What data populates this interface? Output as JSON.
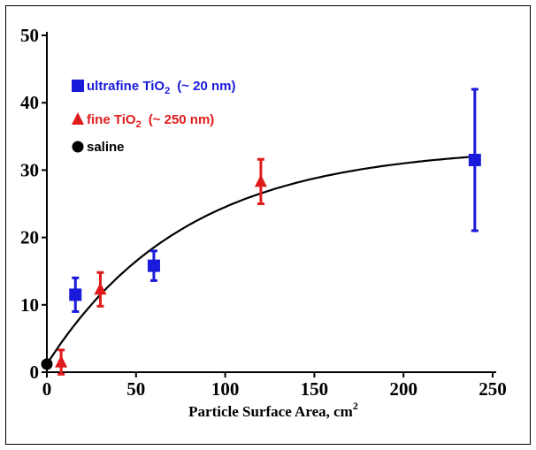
{
  "chart_data": {
    "type": "scatter",
    "title": "",
    "xlabel": "Particle Surface Area, cm",
    "xlabel_sup": "2",
    "ylabel": "",
    "xlim": [
      0,
      250
    ],
    "ylim": [
      0,
      50
    ],
    "x_ticks": [
      0,
      50,
      100,
      150,
      200,
      250
    ],
    "y_ticks": [
      0,
      10,
      20,
      30,
      40,
      50
    ],
    "grid": false,
    "legend_position": "top-left",
    "series": [
      {
        "name": "ultrafine TiO",
        "name_sub": "2",
        "name_extra": "(~ 20 nm)",
        "marker": "square",
        "color": "#1a1adb",
        "points": [
          {
            "x": 16,
            "y": 11.5,
            "err": 2.5
          },
          {
            "x": 60,
            "y": 15.8,
            "err": 2.2
          },
          {
            "x": 240,
            "y": 31.5,
            "err": 10.5
          }
        ]
      },
      {
        "name": "fine TiO",
        "name_sub": "2",
        "name_extra": "(~ 250 nm)",
        "marker": "triangle",
        "color": "#e01b1b",
        "points": [
          {
            "x": 8,
            "y": 1.5,
            "err": 1.8
          },
          {
            "x": 30,
            "y": 12.3,
            "err": 2.5
          },
          {
            "x": 120,
            "y": 28.3,
            "err": 3.3
          }
        ]
      },
      {
        "name": "saline",
        "marker": "circle",
        "color": "#000000",
        "points": [
          {
            "x": 0,
            "y": 1.2,
            "err": 0
          }
        ]
      }
    ],
    "fit_curve": {
      "type": "saturating-exponential",
      "a": 33.5,
      "b": 32.3,
      "c": 0.0128
    }
  }
}
